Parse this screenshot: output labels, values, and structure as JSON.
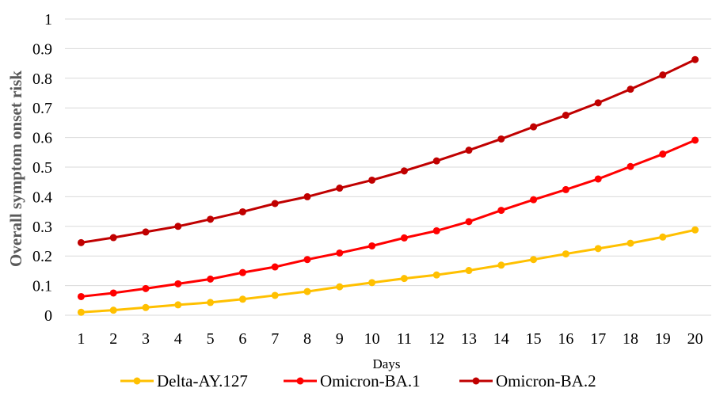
{
  "chart_data": {
    "type": "line",
    "title": "",
    "xlabel": "Days",
    "ylabel": "Overall symptom onset risk",
    "ylim": [
      0,
      1
    ],
    "yticks": [
      "0",
      "0.1",
      "0.2",
      "0.3",
      "0.4",
      "0.5",
      "0.6",
      "0.7",
      "0.8",
      "0.9",
      "1"
    ],
    "x": [
      1,
      2,
      3,
      4,
      5,
      6,
      7,
      8,
      9,
      10,
      11,
      12,
      13,
      14,
      15,
      16,
      17,
      18,
      19,
      20
    ],
    "grid": true,
    "legend_position": "bottom",
    "series": [
      {
        "name": "Delta-AY.127",
        "color": "#ffc000",
        "values": [
          0.01,
          0.017,
          0.026,
          0.035,
          0.043,
          0.054,
          0.067,
          0.08,
          0.096,
          0.11,
          0.124,
          0.136,
          0.151,
          0.169,
          0.188,
          0.207,
          0.225,
          0.243,
          0.264,
          0.288
        ]
      },
      {
        "name": "Omicron-BA.1",
        "color": "#ff0000",
        "values": [
          0.063,
          0.075,
          0.09,
          0.106,
          0.122,
          0.144,
          0.163,
          0.188,
          0.21,
          0.234,
          0.261,
          0.285,
          0.316,
          0.354,
          0.39,
          0.424,
          0.46,
          0.502,
          0.544,
          0.591
        ]
      },
      {
        "name": "Omicron-BA.2",
        "color": "#c00000",
        "values": [
          0.245,
          0.262,
          0.281,
          0.3,
          0.324,
          0.349,
          0.377,
          0.4,
          0.429,
          0.456,
          0.487,
          0.521,
          0.557,
          0.595,
          0.636,
          0.675,
          0.717,
          0.763,
          0.811,
          0.863
        ]
      }
    ]
  }
}
